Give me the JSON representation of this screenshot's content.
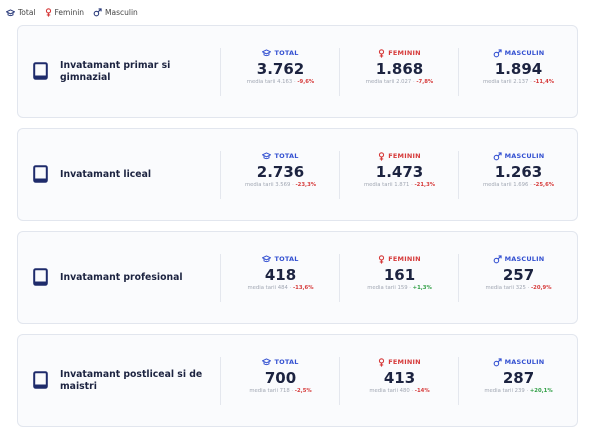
{
  "legend": {
    "items": [
      "Total",
      "Feminin",
      "Masculin"
    ]
  },
  "cards": [
    {
      "title": "Invatamant primar si gimnazial",
      "stats": [
        {
          "label": "TOTAL",
          "color": "#3451d1",
          "value": "3.762",
          "media": "media tarii 4.163",
          "delta": "-9,6%",
          "delta_color": "#d63a3a"
        },
        {
          "label": "FEMININ",
          "color": "#d63a3a",
          "value": "1.868",
          "media": "media tarii 2.027",
          "delta": "-7,8%",
          "delta_color": "#d63a3a"
        },
        {
          "label": "MASCULIN",
          "color": "#3451d1",
          "value": "1.894",
          "media": "media tarii 2.137",
          "delta": "-11,4%",
          "delta_color": "#d63a3a"
        }
      ]
    },
    {
      "title": "Invatamant liceal",
      "stats": [
        {
          "label": "TOTAL",
          "color": "#3451d1",
          "value": "2.736",
          "media": "media tarii 3.569",
          "delta": "-23,3%",
          "delta_color": "#d63a3a"
        },
        {
          "label": "FEMININ",
          "color": "#d63a3a",
          "value": "1.473",
          "media": "media tarii 1.871",
          "delta": "-21,3%",
          "delta_color": "#d63a3a"
        },
        {
          "label": "MASCULIN",
          "color": "#3451d1",
          "value": "1.263",
          "media": "media tarii 1.696",
          "delta": "-25,6%",
          "delta_color": "#d63a3a"
        }
      ]
    },
    {
      "title": "Invatamant profesional",
      "stats": [
        {
          "label": "TOTAL",
          "color": "#3451d1",
          "value": "418",
          "media": "media tarii 484",
          "delta": "-13,6%",
          "delta_color": "#d63a3a"
        },
        {
          "label": "FEMININ",
          "color": "#d63a3a",
          "value": "161",
          "media": "media tarii 159",
          "delta": "+1,3%",
          "delta_color": "#2f9e44"
        },
        {
          "label": "MASCULIN",
          "color": "#3451d1",
          "value": "257",
          "media": "media tarii 325",
          "delta": "-20,9%",
          "delta_color": "#d63a3a"
        }
      ]
    },
    {
      "title": "Invatamant postliceal si de maistri",
      "stats": [
        {
          "label": "TOTAL",
          "color": "#3451d1",
          "value": "700",
          "media": "media tarii 718",
          "delta": "-2,5%",
          "delta_color": "#d63a3a"
        },
        {
          "label": "FEMININ",
          "color": "#d63a3a",
          "value": "413",
          "media": "media tarii 480",
          "delta": "-14%",
          "delta_color": "#d63a3a"
        },
        {
          "label": "MASCULIN",
          "color": "#3451d1",
          "value": "287",
          "media": "media tarii 239",
          "delta": "+20,1%",
          "delta_color": "#2f9e44"
        }
      ]
    }
  ]
}
